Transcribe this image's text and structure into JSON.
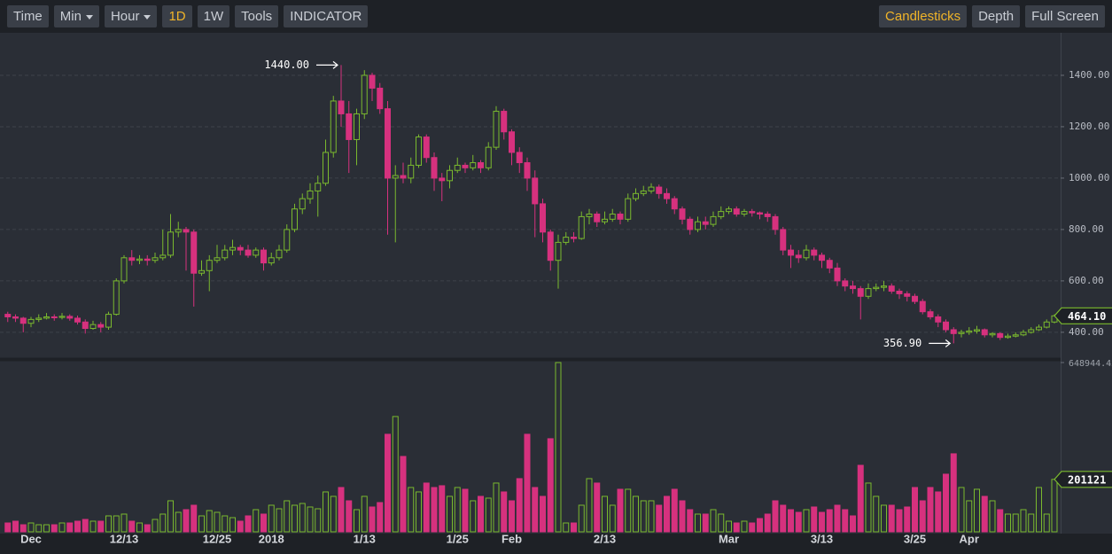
{
  "toolbar": {
    "left": [
      {
        "label": "Time"
      },
      {
        "label": "Min",
        "menu": true
      },
      {
        "label": "Hour",
        "menu": true
      },
      {
        "label": "1D",
        "active": true
      },
      {
        "label": "1W"
      },
      {
        "label": "Tools"
      },
      {
        "label": "INDICATOR"
      }
    ],
    "right": [
      {
        "label": "Candlesticks",
        "active": true
      },
      {
        "label": "Depth"
      },
      {
        "label": "Full Screen"
      }
    ]
  },
  "chart_data": {
    "type": "candlestick",
    "categories": [
      null,
      null,
      null,
      "Dec",
      null,
      null,
      null,
      null,
      null,
      null,
      null,
      null,
      null,
      null,
      null,
      "12/13",
      null,
      null,
      null,
      null,
      null,
      null,
      null,
      null,
      null,
      null,
      null,
      "12/25",
      null,
      null,
      null,
      null,
      null,
      null,
      "2018",
      null,
      null,
      null,
      null,
      null,
      null,
      null,
      null,
      null,
      null,
      null,
      "1/13",
      null,
      null,
      null,
      null,
      null,
      null,
      null,
      null,
      null,
      null,
      null,
      "1/25",
      null,
      null,
      null,
      null,
      null,
      null,
      "Feb",
      null,
      null,
      null,
      null,
      null,
      null,
      null,
      null,
      null,
      null,
      null,
      "2/13",
      null,
      null,
      null,
      null,
      null,
      null,
      null,
      null,
      null,
      null,
      null,
      null,
      null,
      null,
      null,
      "Mar",
      null,
      null,
      null,
      null,
      null,
      null,
      null,
      null,
      null,
      null,
      null,
      "3/13",
      null,
      null,
      null,
      null,
      null,
      null,
      null,
      null,
      null,
      null,
      null,
      "3/25",
      null,
      null,
      null,
      null,
      null,
      null,
      "Apr",
      null,
      null,
      null,
      null,
      null,
      null,
      null,
      null,
      null,
      null,
      null
    ],
    "open": [
      470,
      460,
      455,
      435,
      450,
      455,
      460,
      458,
      462,
      455,
      440,
      415,
      430,
      420,
      470,
      600,
      690,
      680,
      685,
      680,
      690,
      700,
      790,
      800,
      790,
      630,
      640,
      680,
      690,
      720,
      730,
      720,
      700,
      720,
      670,
      690,
      720,
      800,
      880,
      920,
      950,
      980,
      1100,
      1300,
      1250,
      1150,
      1250,
      1400,
      1350,
      1270,
      1000,
      1010,
      1000,
      1050,
      1160,
      1080,
      1000,
      990,
      1030,
      1050,
      1040,
      1060,
      1040,
      1120,
      1260,
      1180,
      1100,
      1060,
      1000,
      900,
      790,
      680,
      750,
      770,
      765,
      850,
      860,
      830,
      840,
      860,
      840,
      920,
      940,
      950,
      965,
      940,
      920,
      880,
      840,
      800,
      830,
      820,
      850,
      870,
      880,
      860,
      870,
      865,
      860,
      850,
      800,
      720,
      700,
      690,
      720,
      700,
      680,
      650,
      600,
      580,
      570,
      540,
      570,
      575,
      580,
      560,
      550,
      540,
      520,
      480,
      460,
      440,
      410,
      395,
      400,
      405,
      410,
      390,
      395,
      380,
      385,
      390,
      400,
      410,
      420,
      440
    ],
    "high": [
      480,
      470,
      460,
      460,
      470,
      475,
      470,
      475,
      470,
      465,
      450,
      445,
      440,
      480,
      610,
      700,
      720,
      700,
      700,
      710,
      800,
      860,
      830,
      810,
      800,
      680,
      700,
      740,
      740,
      760,
      740,
      740,
      730,
      730,
      710,
      740,
      820,
      900,
      940,
      980,
      1010,
      1150,
      1320,
      1440,
      1300,
      1270,
      1420,
      1410,
      1370,
      1300,
      1050,
      1060,
      1080,
      1170,
      1170,
      1100,
      1020,
      1050,
      1080,
      1060,
      1090,
      1070,
      1140,
      1280,
      1270,
      1190,
      1120,
      1080,
      1030,
      920,
      800,
      780,
      790,
      790,
      870,
      880,
      870,
      870,
      880,
      870,
      940,
      960,
      970,
      980,
      975,
      960,
      930,
      890,
      850,
      850,
      850,
      870,
      890,
      890,
      890,
      880,
      880,
      870,
      870,
      860,
      810,
      740,
      720,
      740,
      730,
      710,
      690,
      670,
      610,
      600,
      580,
      590,
      590,
      600,
      590,
      570,
      560,
      550,
      530,
      490,
      470,
      450,
      420,
      410,
      420,
      425,
      415,
      400,
      400,
      395,
      400,
      410,
      420,
      430,
      450,
      470
    ],
    "low": [
      440,
      440,
      400,
      420,
      440,
      450,
      445,
      450,
      445,
      430,
      395,
      410,
      400,
      410,
      465,
      590,
      660,
      665,
      660,
      670,
      680,
      690,
      770,
      640,
      500,
      620,
      560,
      670,
      680,
      700,
      700,
      690,
      690,
      640,
      660,
      680,
      710,
      790,
      860,
      900,
      850,
      970,
      1080,
      1200,
      1020,
      1050,
      1230,
      1300,
      1250,
      780,
      750,
      980,
      980,
      1040,
      1060,
      950,
      910,
      960,
      1020,
      1020,
      1030,
      1020,
      1030,
      1110,
      1150,
      1050,
      1020,
      950,
      770,
      750,
      640,
      570,
      740,
      750,
      760,
      820,
      810,
      820,
      830,
      820,
      830,
      910,
      930,
      940,
      920,
      900,
      860,
      820,
      780,
      790,
      800,
      810,
      840,
      860,
      850,
      850,
      850,
      840,
      830,
      780,
      700,
      650,
      670,
      680,
      680,
      650,
      630,
      580,
      560,
      550,
      450,
      530,
      560,
      560,
      550,
      530,
      520,
      510,
      470,
      450,
      420,
      400,
      356.9,
      380,
      390,
      395,
      380,
      380,
      370,
      375,
      380,
      385,
      395,
      405,
      415,
      435
    ],
    "close": [
      460,
      455,
      435,
      450,
      455,
      460,
      458,
      462,
      455,
      440,
      415,
      430,
      420,
      470,
      600,
      690,
      680,
      685,
      680,
      690,
      700,
      790,
      800,
      790,
      630,
      640,
      680,
      690,
      720,
      730,
      720,
      700,
      720,
      670,
      690,
      720,
      800,
      880,
      920,
      950,
      980,
      1100,
      1300,
      1250,
      1150,
      1250,
      1400,
      1350,
      1270,
      1000,
      1010,
      1000,
      1050,
      1160,
      1080,
      1000,
      990,
      1030,
      1050,
      1040,
      1060,
      1040,
      1120,
      1260,
      1180,
      1100,
      1060,
      1000,
      900,
      790,
      680,
      750,
      770,
      765,
      850,
      860,
      830,
      840,
      860,
      840,
      920,
      940,
      950,
      965,
      940,
      920,
      880,
      840,
      800,
      830,
      820,
      850,
      870,
      880,
      860,
      870,
      865,
      860,
      850,
      800,
      720,
      700,
      690,
      720,
      700,
      680,
      650,
      600,
      580,
      570,
      540,
      570,
      575,
      580,
      560,
      550,
      540,
      520,
      480,
      460,
      440,
      410,
      395,
      400,
      405,
      410,
      390,
      395,
      380,
      385,
      390,
      400,
      410,
      420,
      440,
      464.1
    ],
    "volume": [
      34000,
      40800,
      27200,
      34000,
      27200,
      27200,
      27200,
      34000,
      34000,
      40800,
      47600,
      40800,
      40800,
      61200,
      61200,
      68000,
      40800,
      34000,
      27200,
      47600,
      68000,
      119000,
      74800,
      85000,
      102000,
      61200,
      81600,
      74800,
      61200,
      54400,
      40800,
      61200,
      85000,
      68000,
      102000,
      88400,
      119000,
      102000,
      108800,
      95200,
      88400,
      153000,
      136000,
      170000,
      119000,
      85000,
      136000,
      95200,
      112200,
      374000,
      442000,
      289000,
      170000,
      153000,
      187000,
      170000,
      176800,
      136000,
      170000,
      163200,
      119000,
      136000,
      129200,
      187000,
      153000,
      119000,
      204000,
      374000,
      170000,
      136000,
      357000,
      648944.42,
      34000,
      34000,
      102000,
      204000,
      187000,
      136000,
      102000,
      163200,
      163200,
      136000,
      119000,
      119000,
      102000,
      136000,
      163200,
      119000,
      85000,
      68000,
      68000,
      85000,
      68000,
      40800,
      34000,
      40800,
      34000,
      51000,
      68000,
      119000,
      102000,
      85000,
      74800,
      85000,
      95200,
      74800,
      85000,
      102000,
      85000,
      61200,
      255000,
      187000,
      136000,
      102000,
      102000,
      85000,
      95200,
      170000,
      119000,
      170000,
      153000,
      221000,
      299200,
      170000,
      119000,
      163200,
      136000,
      119000,
      85000,
      68000,
      68000,
      85000,
      68000,
      170000,
      68000,
      201121
    ],
    "ylim": [
      303,
      1562
    ],
    "yticks": [
      {
        "value": 400,
        "label": "400.00"
      },
      {
        "value": 600,
        "label": "600.00"
      },
      {
        "value": 800,
        "label": "800.00"
      },
      {
        "value": 1000,
        "label": "1000.00"
      },
      {
        "value": 1200,
        "label": "1200.00"
      },
      {
        "value": 1400,
        "label": "1400.00"
      }
    ],
    "volume_ylim": [
      0,
      648944.42
    ],
    "volume_yticks": [
      648944.42
    ],
    "grid": true,
    "up_color": "#7ab92e",
    "down_color": "#d6317e",
    "high_label": "1440.00",
    "low_label": "356.90",
    "last_price_label": "464.10"
  }
}
